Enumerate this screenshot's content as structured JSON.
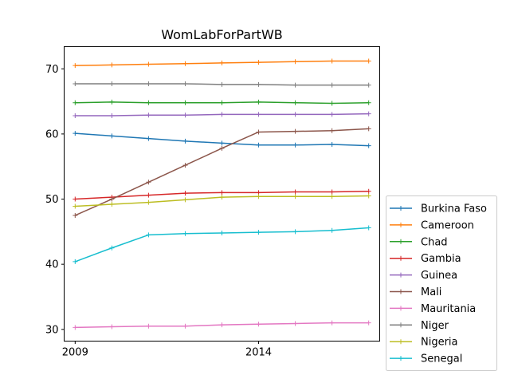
{
  "chart_data": {
    "type": "line",
    "title": "WomLabForPartWB",
    "xlabel": "",
    "ylabel": "",
    "x": [
      2009,
      2010,
      2011,
      2012,
      2013,
      2014,
      2015,
      2016,
      2017
    ],
    "xlim": [
      2008.7,
      2017.3
    ],
    "ylim": [
      28.2,
      73.4
    ],
    "xticks": [
      2009,
      2014
    ],
    "xtick_labels": [
      "2009",
      "2014"
    ],
    "yticks": [
      30,
      40,
      50,
      60,
      70
    ],
    "ytick_labels": [
      "30",
      "40",
      "50",
      "60",
      "70"
    ],
    "grid": false,
    "legend_position": "lower-right-outside",
    "marker": "+",
    "series": [
      {
        "name": "Burkina Faso",
        "color": "#1f77b4",
        "values": [
          60.1,
          59.7,
          59.3,
          58.9,
          58.6,
          58.3,
          58.3,
          58.4,
          58.2
        ]
      },
      {
        "name": "Cameroon",
        "color": "#ff7f0e",
        "values": [
          70.5,
          70.6,
          70.7,
          70.8,
          70.9,
          71.0,
          71.1,
          71.2,
          71.2
        ]
      },
      {
        "name": "Chad",
        "color": "#2ca02c",
        "values": [
          64.8,
          64.9,
          64.8,
          64.8,
          64.8,
          64.9,
          64.8,
          64.7,
          64.8
        ]
      },
      {
        "name": "Gambia",
        "color": "#d62728",
        "values": [
          50.0,
          50.3,
          50.6,
          50.9,
          51.0,
          51.0,
          51.1,
          51.1,
          51.2
        ]
      },
      {
        "name": "Guinea",
        "color": "#9467bd",
        "values": [
          62.8,
          62.8,
          62.9,
          62.9,
          63.0,
          63.0,
          63.0,
          63.0,
          63.1
        ]
      },
      {
        "name": "Mali",
        "color": "#8c564b",
        "values": [
          47.5,
          50.0,
          52.6,
          55.2,
          57.8,
          60.3,
          60.4,
          60.5,
          60.8
        ]
      },
      {
        "name": "Mauritania",
        "color": "#e377c2",
        "values": [
          30.3,
          30.4,
          30.5,
          30.5,
          30.7,
          30.8,
          30.9,
          31.0,
          31.0
        ]
      },
      {
        "name": "Niger",
        "color": "#7f7f7f",
        "values": [
          67.7,
          67.7,
          67.7,
          67.7,
          67.6,
          67.6,
          67.5,
          67.5,
          67.5
        ]
      },
      {
        "name": "Nigeria",
        "color": "#bcbd22",
        "values": [
          48.9,
          49.2,
          49.5,
          49.9,
          50.3,
          50.4,
          50.4,
          50.4,
          50.5
        ]
      },
      {
        "name": "Senegal",
        "color": "#17becf",
        "values": [
          40.4,
          42.5,
          44.5,
          44.7,
          44.8,
          44.9,
          45.0,
          45.2,
          45.6
        ]
      }
    ]
  }
}
